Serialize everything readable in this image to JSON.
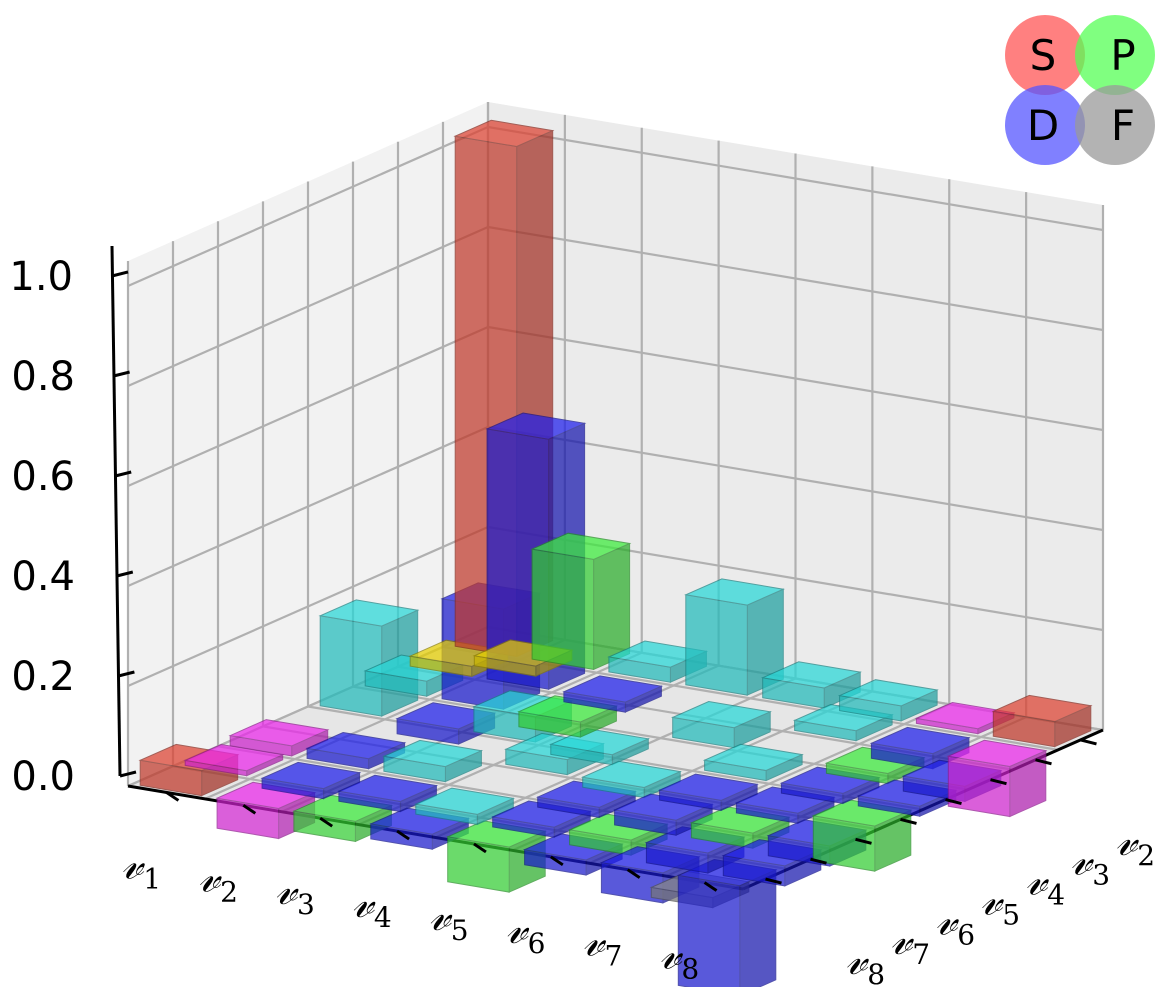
{
  "chart_data": {
    "type": "bar3d",
    "categories": [
      "𝓋1",
      "𝓋2",
      "𝓋3",
      "𝓋4",
      "𝓋5",
      "𝓋6",
      "𝓋7",
      "𝓋8"
    ],
    "category_base": "𝓋",
    "category_subs": [
      "1",
      "2",
      "3",
      "4",
      "5",
      "6",
      "7",
      "8"
    ],
    "zlim": [
      0,
      1.05
    ],
    "zticks": [
      "0.0",
      "0.2",
      "0.4",
      "0.6",
      "0.8",
      "1.0"
    ],
    "grid": true,
    "legend": {
      "placement": "top-right",
      "items": [
        {
          "label": "S",
          "color": "#ff5555"
        },
        {
          "label": "P",
          "color": "#55ff55"
        },
        {
          "label": "D",
          "color": "#5555ff"
        },
        {
          "label": "F",
          "color": "#999999"
        }
      ]
    },
    "colors": {
      "S": "#c0392b",
      "P": "#33cc33",
      "D": "#1a1acc",
      "F": "#777777",
      "SP": "#c8b400",
      "SD": "#cc22cc",
      "PD": "#22bbbb"
    },
    "bars": [
      {
        "row": 1,
        "col": 1,
        "value": 1.02,
        "color": "S"
      },
      {
        "row": 1,
        "col": 8,
        "value": 0.05,
        "color": "S"
      },
      {
        "row": 8,
        "col": 1,
        "value": 0.05,
        "color": "S"
      },
      {
        "row": 2,
        "col": 2,
        "value": 0.5,
        "color": "D"
      },
      {
        "row": 2,
        "col": 1,
        "value": 0.22,
        "color": "P"
      },
      {
        "row": 2,
        "col": 3,
        "value": 0.2,
        "color": "D"
      },
      {
        "row": 1,
        "col": 2,
        "value": 0.02,
        "color": "SP"
      },
      {
        "row": 3,
        "col": 1,
        "value": 0.03,
        "color": "PD"
      },
      {
        "row": 4,
        "col": 1,
        "value": 0.18,
        "color": "PD"
      },
      {
        "row": 1,
        "col": 4,
        "value": 0.18,
        "color": "PD"
      },
      {
        "row": 1,
        "col": 3,
        "value": 0.03,
        "color": "PD"
      },
      {
        "row": 5,
        "col": 1,
        "value": 0.04,
        "color": "PD"
      },
      {
        "row": 3,
        "col": 4,
        "value": 0.05,
        "color": "PD"
      },
      {
        "row": 5,
        "col": 3,
        "value": 0.04,
        "color": "PD"
      },
      {
        "row": 6,
        "col": 1,
        "value": 0.03,
        "color": "PD"
      },
      {
        "row": 4,
        "col": 5,
        "value": 0.03,
        "color": "PD"
      },
      {
        "row": 6,
        "col": 4,
        "value": 0.02,
        "color": "PD"
      },
      {
        "row": 3,
        "col": 6,
        "value": 0.03,
        "color": "PD"
      },
      {
        "row": 4,
        "col": 4,
        "value": -0.02,
        "color": "PD"
      },
      {
        "row": 5,
        "col": 5,
        "value": -0.02,
        "color": "PD"
      },
      {
        "row": 2,
        "col": 6,
        "value": 0.02,
        "color": "D"
      },
      {
        "row": 3,
        "col": 3,
        "value": -0.03,
        "color": "P"
      },
      {
        "row": 3,
        "col": 2,
        "value": -0.02,
        "color": "D"
      },
      {
        "row": 2,
        "col": 4,
        "value": -0.03,
        "color": "D"
      },
      {
        "row": 7,
        "col": 1,
        "value": 0.01,
        "color": "SD"
      },
      {
        "row": 8,
        "col": 2,
        "value": -0.1,
        "color": "SD"
      },
      {
        "row": 2,
        "col": 8,
        "value": -0.06,
        "color": "SD"
      },
      {
        "row": 1,
        "col": 7,
        "value": 0.01,
        "color": "SD"
      },
      {
        "row": 7,
        "col": 3,
        "value": -0.02,
        "color": "P"
      },
      {
        "row": 8,
        "col": 5,
        "value": -0.09,
        "color": "P"
      },
      {
        "row": 5,
        "col": 8,
        "value": -0.09,
        "color": "P"
      },
      {
        "row": 3,
        "col": 8,
        "value": -0.04,
        "color": "P"
      },
      {
        "row": 6,
        "col": 7,
        "value": -0.03,
        "color": "P"
      },
      {
        "row": 7,
        "col": 6,
        "value": -0.03,
        "color": "P"
      },
      {
        "row": 4,
        "col": 7,
        "value": -0.02,
        "color": "PD"
      },
      {
        "row": 2,
        "col": 7,
        "value": -0.02,
        "color": "D"
      },
      {
        "row": 7,
        "col": 2,
        "value": -0.03,
        "color": "D"
      },
      {
        "row": 8,
        "col": 8,
        "value": -0.22,
        "color": "D"
      },
      {
        "row": 7,
        "col": 8,
        "value": -0.06,
        "color": "D"
      },
      {
        "row": 8,
        "col": 7,
        "value": -0.04,
        "color": "D"
      },
      {
        "row": 7,
        "col": 7,
        "value": -0.04,
        "color": "D"
      },
      {
        "row": 6,
        "col": 8,
        "value": -0.03,
        "color": "D"
      },
      {
        "row": 8,
        "col": 6,
        "value": -0.04,
        "color": "D"
      },
      {
        "row": 6,
        "col": 6,
        "value": -0.03,
        "color": "D"
      },
      {
        "row": 5,
        "col": 6,
        "value": -0.02,
        "color": "D"
      },
      {
        "row": 6,
        "col": 5,
        "value": -0.02,
        "color": "D"
      },
      {
        "row": 4,
        "col": 8,
        "value": -0.03,
        "color": "D"
      },
      {
        "row": 8,
        "col": 4,
        "value": -0.02,
        "color": "D"
      },
      {
        "row": 5,
        "col": 7,
        "value": -0.02,
        "color": "D"
      },
      {
        "row": 7,
        "col": 5,
        "value": -0.02,
        "color": "D"
      },
      {
        "row": 8,
        "col": 3,
        "value": -0.03,
        "color": "D"
      },
      {
        "row": 3,
        "col": 7,
        "value": -0.02,
        "color": "D"
      },
      {
        "row": 7,
        "col": 4,
        "value": -0.02,
        "color": "D"
      },
      {
        "row": 1,
        "col": 6,
        "value": 0.02,
        "color": "SD"
      },
      {
        "row": 6,
        "col": 2,
        "value": 0.02,
        "color": "PD"
      },
      {
        "row": 8,
        "col": 8.6,
        "value": -0.02,
        "color": "F"
      },
      {
        "row": 1.6,
        "col": 1.6,
        "value": 0.02,
        "color": "SP"
      }
    ]
  }
}
